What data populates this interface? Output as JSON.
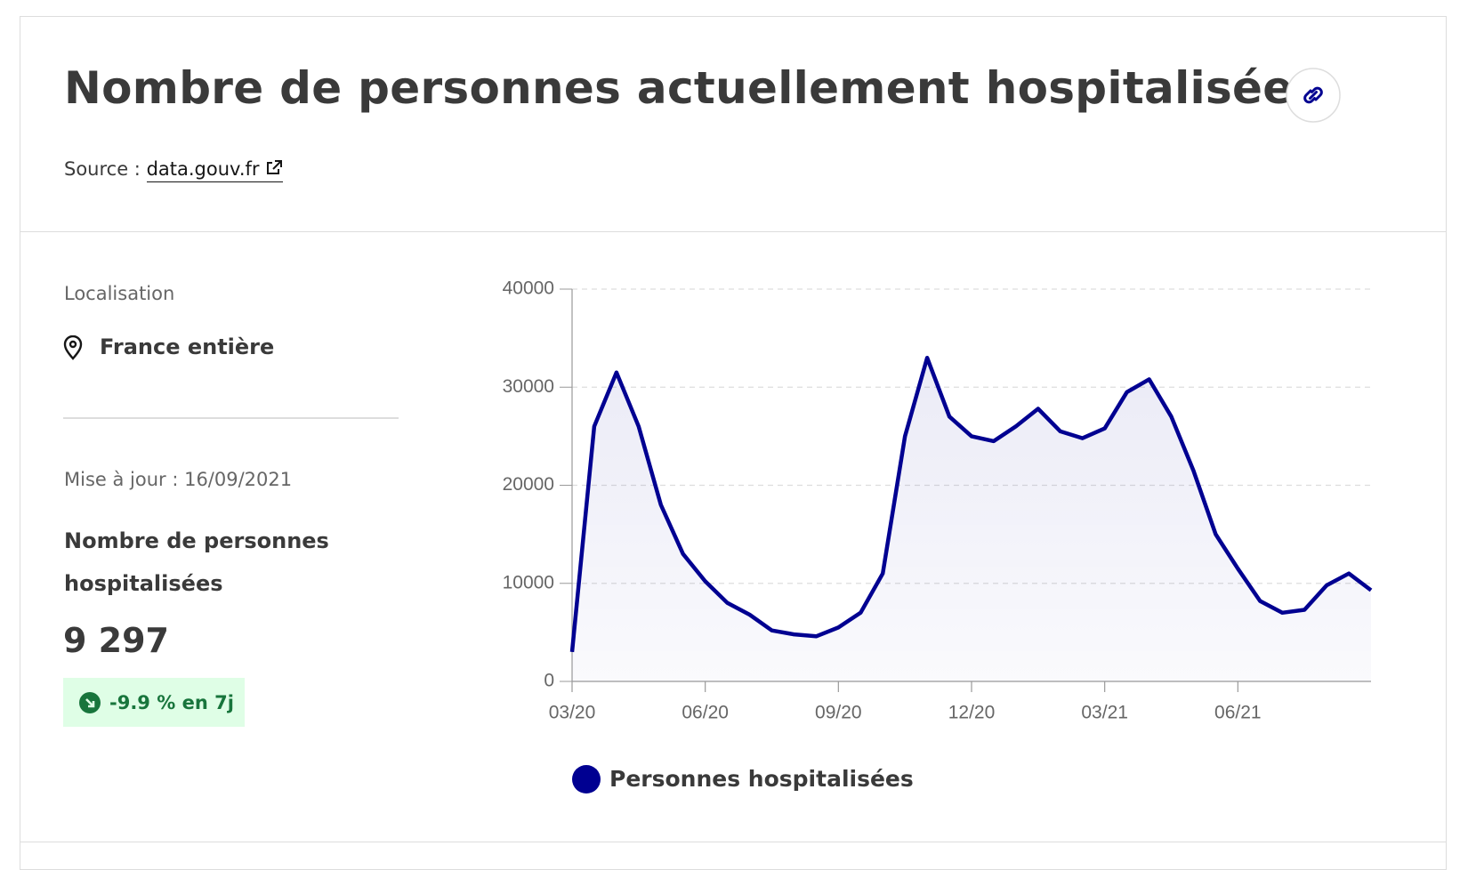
{
  "header": {
    "title": "Nombre de personnes actuellement hospitalisées",
    "source_label": "Source :",
    "source_link": "data.gouv.fr"
  },
  "sidebar": {
    "location_label": "Localisation",
    "location": "France entière",
    "updated": "Mise à jour : 16/09/2021",
    "kpi_label": "Nombre de personnes hospitalisées",
    "kpi_value": "9 297",
    "trend": "-9.9 % en 7j"
  },
  "chart_data": {
    "type": "line",
    "fill": true,
    "grid": true,
    "categories": [
      "03/20",
      null,
      null,
      null,
      null,
      null,
      "06/20",
      null,
      null,
      null,
      null,
      null,
      "09/20",
      null,
      null,
      null,
      null,
      null,
      "12/20",
      null,
      null,
      null,
      null,
      null,
      "03/21",
      null,
      null,
      null,
      null,
      null,
      "06/21",
      null,
      null,
      null,
      null,
      null,
      null
    ],
    "series": [
      {
        "name": "Personnes hospitalisées",
        "color": "#000091",
        "values": [
          3000,
          26000,
          31500,
          26000,
          18000,
          13000,
          10200,
          8000,
          6800,
          5200,
          4800,
          4600,
          5500,
          7000,
          11000,
          25000,
          33000,
          27000,
          25000,
          24500,
          26000,
          27800,
          25500,
          24800,
          25800,
          29500,
          30800,
          27000,
          21500,
          15000,
          11500,
          8200,
          7000,
          7300,
          9800,
          11000,
          9297
        ]
      }
    ],
    "ylim": [
      0,
      40000
    ],
    "yticks": [
      0,
      10000,
      20000,
      30000,
      40000
    ]
  }
}
